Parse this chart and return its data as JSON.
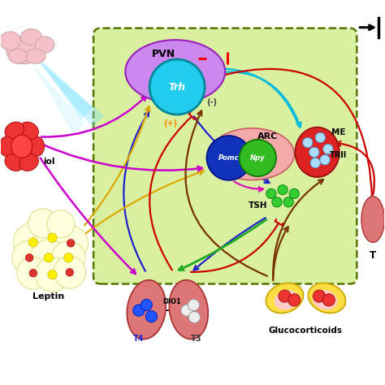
{
  "bg_color": "#ffffff",
  "pvn_label": "PVN",
  "trh_label": "Trh",
  "arc_label": "ARC",
  "pomc_label": "Pomc",
  "npy_label": "Npy",
  "me_label": "ME",
  "trh2_label": "TRII",
  "tsh_label": "TSH",
  "leptin_label": "Leptin",
  "glucocorticoids_label": "Glucocorticoids",
  "t4_label": "T4",
  "t3_label": "T3",
  "dio1_label": "DIO1",
  "estradiol_label": "iol",
  "t_label": "T",
  "plus_label": "(+)",
  "minus_label": "(-)",
  "cyan_color": "#00bbdd",
  "dark_blue": "#2222cc",
  "magenta": "#dd00bb",
  "yellow": "#ddaa00",
  "red": "#cc0000",
  "brown": "#773300",
  "green_arrow": "#22aa22",
  "purple_magenta": "#cc00cc"
}
